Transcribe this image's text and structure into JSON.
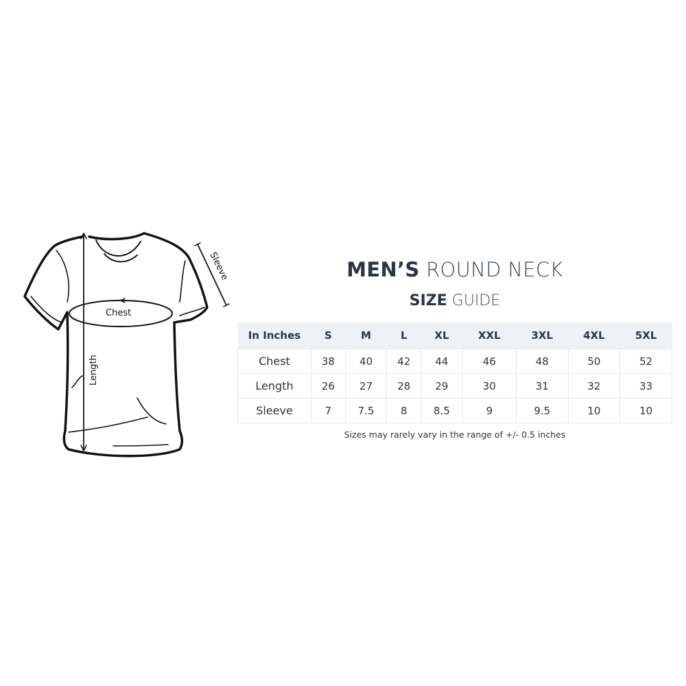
{
  "diagram": {
    "chest_label": "Chest",
    "length_label": "Length",
    "sleeve_label": "Sleeve"
  },
  "title": {
    "bold": "MEN’S",
    "light": "ROUND NECK"
  },
  "subtitle": {
    "bold": "SIZE",
    "light": "GUIDE"
  },
  "table": {
    "header": [
      "In Inches",
      "S",
      "M",
      "L",
      "XL",
      "XXL",
      "3XL",
      "4XL",
      "5XL"
    ],
    "rows": [
      {
        "label": "Chest",
        "values": [
          "38",
          "40",
          "42",
          "44",
          "46",
          "48",
          "50",
          "52"
        ]
      },
      {
        "label": "Length",
        "values": [
          "26",
          "27",
          "28",
          "29",
          "30",
          "31",
          "32",
          "33"
        ]
      },
      {
        "label": "Sleeve",
        "values": [
          "7",
          "7.5",
          "8",
          "8.5",
          "9",
          "9.5",
          "10",
          "10"
        ]
      }
    ]
  },
  "note": "Sizes may rarely vary in the range of +/- 0.5 inches",
  "colors": {
    "heading": "#2a3545",
    "header_bg": "#eef2f6",
    "border": "#e3e7ea"
  }
}
